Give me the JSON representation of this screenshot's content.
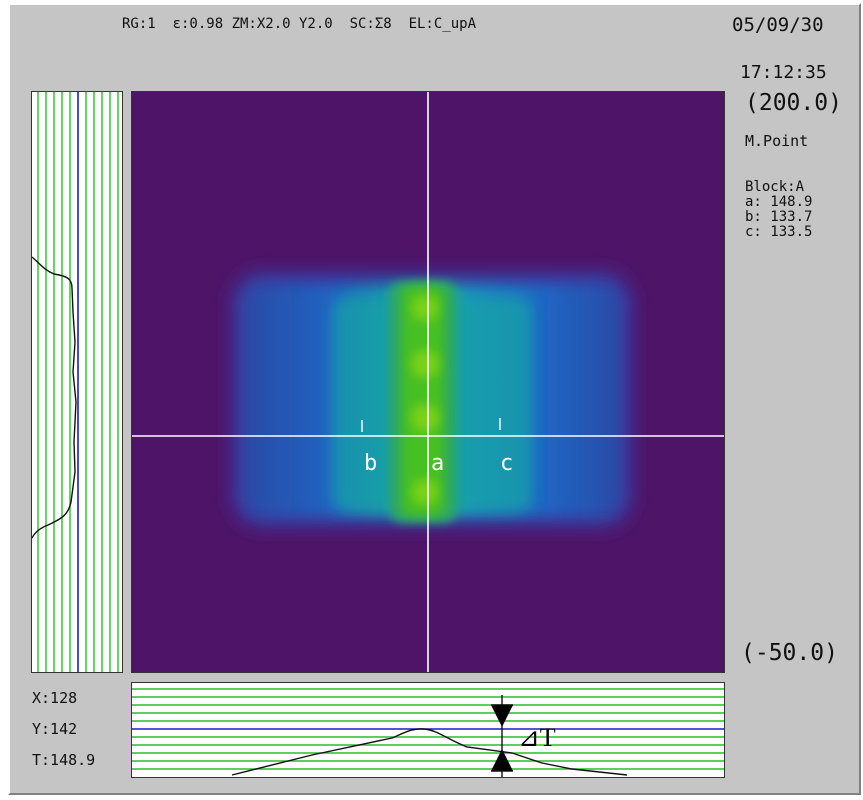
{
  "header": {
    "info_line": "RG:1  ε:0.98 ZM:X2.0 Y2.0  SC:Σ8  EL:C_upA"
  },
  "status": {
    "date": "05/09/30",
    "time": "17:12:35",
    "range_max": "(200.0)",
    "range_min": "(-50.0)",
    "mode": "M.Point"
  },
  "block": {
    "title": "Block:A",
    "points": [
      {
        "label": "a",
        "line": "a: 148.9"
      },
      {
        "label": "b",
        "line": "b: 133.7"
      },
      {
        "label": "c",
        "line": "c: 133.5"
      }
    ]
  },
  "readout": {
    "x": "X:128",
    "y": "Y:142",
    "t": "T:148.9"
  },
  "markers": {
    "a": "a",
    "b": "b",
    "c": "c",
    "delta_t": "⊿T"
  },
  "colors": {
    "background": "#c5c5c5",
    "thermal_bg": "#4e1468",
    "profile_grid": "#22c422",
    "profile_center": "#1a1ad0",
    "crosshair": "#ffffff"
  }
}
